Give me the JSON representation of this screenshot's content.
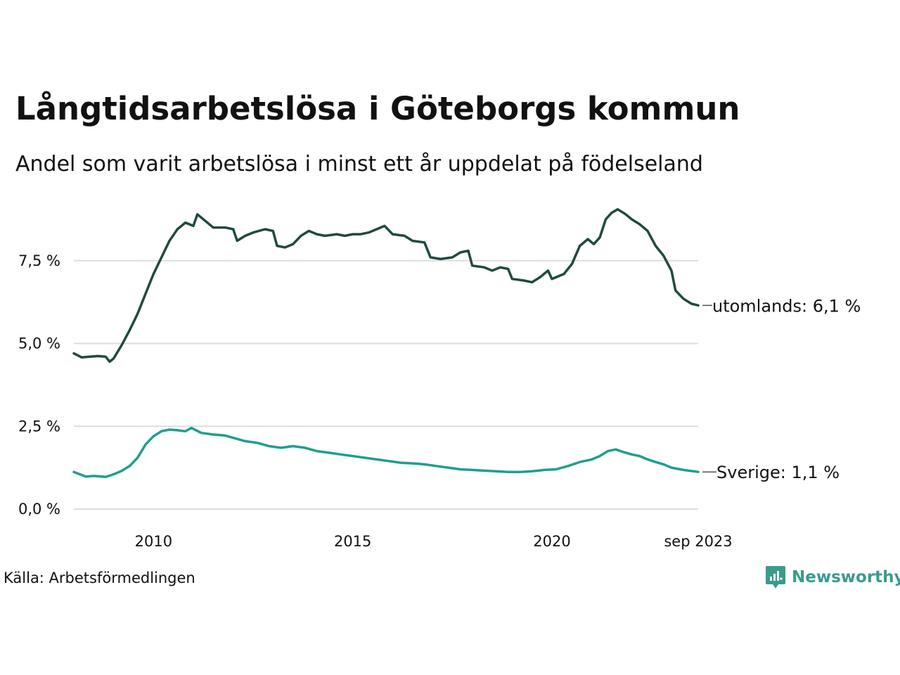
{
  "chart_data": {
    "type": "line",
    "title": "Långtidsarbetslösa i Göteborgs kommun",
    "subtitle": "Andel som varit arbetslösa i minst ett år uppdelat på födelseland",
    "source": "Källa: Arbetsförmedlingen",
    "brand": "Newsworthy",
    "xlabel": "",
    "ylabel": "",
    "xlim": [
      2008.0,
      2023.67
    ],
    "ylim": [
      0,
      9.5
    ],
    "y_ticks": [
      {
        "value": 0,
        "label": "0,0 %"
      },
      {
        "value": 2.5,
        "label": "2,5 %"
      },
      {
        "value": 5,
        "label": "5,0 %"
      },
      {
        "value": 7.5,
        "label": "7,5 %"
      }
    ],
    "x_ticks": [
      {
        "value": 2010,
        "label": "2010"
      },
      {
        "value": 2015,
        "label": "2015"
      },
      {
        "value": 2020,
        "label": "2020"
      },
      {
        "value": 2023.67,
        "label": "sep 2023"
      }
    ],
    "grid": true,
    "series": [
      {
        "name": "utomlands",
        "label": "utomlands: 6,1 %",
        "color": "#1e4a41",
        "points": [
          [
            2008.0,
            4.7
          ],
          [
            2008.2,
            4.58
          ],
          [
            2008.4,
            4.6
          ],
          [
            2008.6,
            4.62
          ],
          [
            2008.8,
            4.6
          ],
          [
            2008.9,
            4.45
          ],
          [
            2009.0,
            4.55
          ],
          [
            2009.2,
            4.95
          ],
          [
            2009.4,
            5.4
          ],
          [
            2009.6,
            5.9
          ],
          [
            2009.8,
            6.5
          ],
          [
            2010.0,
            7.1
          ],
          [
            2010.2,
            7.6
          ],
          [
            2010.4,
            8.1
          ],
          [
            2010.6,
            8.45
          ],
          [
            2010.8,
            8.65
          ],
          [
            2011.0,
            8.55
          ],
          [
            2011.1,
            8.9
          ],
          [
            2011.3,
            8.7
          ],
          [
            2011.5,
            8.5
          ],
          [
            2011.8,
            8.5
          ],
          [
            2012.0,
            8.45
          ],
          [
            2012.1,
            8.1
          ],
          [
            2012.3,
            8.25
          ],
          [
            2012.5,
            8.35
          ],
          [
            2012.8,
            8.45
          ],
          [
            2013.0,
            8.4
          ],
          [
            2013.1,
            7.95
          ],
          [
            2013.3,
            7.9
          ],
          [
            2013.5,
            8.0
          ],
          [
            2013.7,
            8.25
          ],
          [
            2013.9,
            8.4
          ],
          [
            2014.1,
            8.3
          ],
          [
            2014.3,
            8.25
          ],
          [
            2014.6,
            8.3
          ],
          [
            2014.8,
            8.25
          ],
          [
            2015.0,
            8.3
          ],
          [
            2015.2,
            8.3
          ],
          [
            2015.4,
            8.35
          ],
          [
            2015.6,
            8.45
          ],
          [
            2015.8,
            8.55
          ],
          [
            2016.0,
            8.3
          ],
          [
            2016.3,
            8.25
          ],
          [
            2016.5,
            8.1
          ],
          [
            2016.8,
            8.05
          ],
          [
            2016.95,
            7.6
          ],
          [
            2017.2,
            7.55
          ],
          [
            2017.5,
            7.6
          ],
          [
            2017.7,
            7.75
          ],
          [
            2017.9,
            7.8
          ],
          [
            2018.0,
            7.35
          ],
          [
            2018.3,
            7.3
          ],
          [
            2018.5,
            7.2
          ],
          [
            2018.7,
            7.3
          ],
          [
            2018.9,
            7.25
          ],
          [
            2019.0,
            6.95
          ],
          [
            2019.3,
            6.9
          ],
          [
            2019.5,
            6.85
          ],
          [
            2019.7,
            7.0
          ],
          [
            2019.9,
            7.2
          ],
          [
            2020.0,
            6.95
          ],
          [
            2020.3,
            7.1
          ],
          [
            2020.5,
            7.4
          ],
          [
            2020.7,
            7.95
          ],
          [
            2020.9,
            8.15
          ],
          [
            2021.05,
            8.0
          ],
          [
            2021.2,
            8.2
          ],
          [
            2021.35,
            8.75
          ],
          [
            2021.5,
            8.95
          ],
          [
            2021.65,
            9.05
          ],
          [
            2021.85,
            8.9
          ],
          [
            2022.0,
            8.75
          ],
          [
            2022.2,
            8.6
          ],
          [
            2022.4,
            8.4
          ],
          [
            2022.6,
            7.95
          ],
          [
            2022.8,
            7.65
          ],
          [
            2023.0,
            7.2
          ],
          [
            2023.1,
            6.6
          ],
          [
            2023.3,
            6.35
          ],
          [
            2023.5,
            6.2
          ],
          [
            2023.67,
            6.15
          ]
        ]
      },
      {
        "name": "Sverige",
        "label": "Sverige: 1,1 %",
        "color": "#1f9e8e",
        "points": [
          [
            2008.0,
            1.12
          ],
          [
            2008.3,
            0.98
          ],
          [
            2008.5,
            1.0
          ],
          [
            2008.8,
            0.97
          ],
          [
            2009.0,
            1.05
          ],
          [
            2009.2,
            1.15
          ],
          [
            2009.4,
            1.3
          ],
          [
            2009.6,
            1.55
          ],
          [
            2009.8,
            1.95
          ],
          [
            2010.0,
            2.2
          ],
          [
            2010.2,
            2.35
          ],
          [
            2010.4,
            2.4
          ],
          [
            2010.6,
            2.38
          ],
          [
            2010.8,
            2.35
          ],
          [
            2010.95,
            2.45
          ],
          [
            2011.2,
            2.3
          ],
          [
            2011.5,
            2.25
          ],
          [
            2011.8,
            2.22
          ],
          [
            2012.0,
            2.15
          ],
          [
            2012.3,
            2.05
          ],
          [
            2012.6,
            2.0
          ],
          [
            2012.9,
            1.9
          ],
          [
            2013.2,
            1.85
          ],
          [
            2013.5,
            1.9
          ],
          [
            2013.8,
            1.85
          ],
          [
            2014.1,
            1.75
          ],
          [
            2014.4,
            1.7
          ],
          [
            2014.7,
            1.65
          ],
          [
            2015.0,
            1.6
          ],
          [
            2015.3,
            1.55
          ],
          [
            2015.6,
            1.5
          ],
          [
            2015.9,
            1.45
          ],
          [
            2016.2,
            1.4
          ],
          [
            2016.5,
            1.38
          ],
          [
            2016.8,
            1.35
          ],
          [
            2017.1,
            1.3
          ],
          [
            2017.4,
            1.25
          ],
          [
            2017.7,
            1.2
          ],
          [
            2018.0,
            1.18
          ],
          [
            2018.3,
            1.16
          ],
          [
            2018.6,
            1.14
          ],
          [
            2018.9,
            1.12
          ],
          [
            2019.2,
            1.12
          ],
          [
            2019.5,
            1.14
          ],
          [
            2019.8,
            1.18
          ],
          [
            2020.1,
            1.2
          ],
          [
            2020.4,
            1.3
          ],
          [
            2020.7,
            1.42
          ],
          [
            2021.0,
            1.5
          ],
          [
            2021.2,
            1.6
          ],
          [
            2021.4,
            1.75
          ],
          [
            2021.6,
            1.8
          ],
          [
            2021.8,
            1.72
          ],
          [
            2022.0,
            1.65
          ],
          [
            2022.2,
            1.6
          ],
          [
            2022.4,
            1.5
          ],
          [
            2022.6,
            1.42
          ],
          [
            2022.8,
            1.35
          ],
          [
            2023.0,
            1.25
          ],
          [
            2023.3,
            1.18
          ],
          [
            2023.67,
            1.12
          ]
        ]
      }
    ]
  }
}
